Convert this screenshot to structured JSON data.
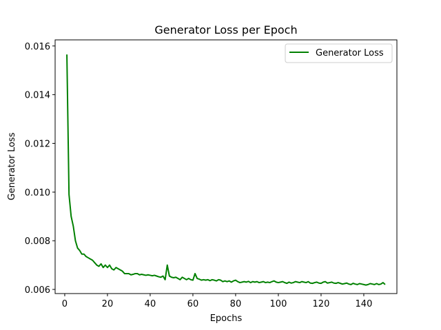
{
  "chart_data": {
    "type": "line",
    "title": "Generator Loss per Epoch",
    "xlabel": "Epochs",
    "ylabel": "Generator Loss",
    "xlim": [
      -4.5,
      155.5
    ],
    "ylim": [
      0.00583,
      0.01625
    ],
    "xticks": [
      0,
      20,
      40,
      60,
      80,
      100,
      120,
      140
    ],
    "yticks": [
      0.006,
      0.008,
      0.01,
      0.012,
      0.014,
      0.016
    ],
    "ytick_labels": [
      "0.006",
      "0.008",
      "0.010",
      "0.012",
      "0.014",
      "0.016"
    ],
    "grid": false,
    "legend_position": "top-right",
    "series": [
      {
        "name": "Generator Loss",
        "color": "#008000",
        "x": [
          1,
          2,
          3,
          4,
          5,
          6,
          7,
          8,
          9,
          10,
          11,
          12,
          13,
          14,
          15,
          16,
          17,
          18,
          19,
          20,
          21,
          22,
          23,
          24,
          25,
          26,
          27,
          28,
          29,
          30,
          31,
          32,
          33,
          34,
          35,
          36,
          37,
          38,
          39,
          40,
          41,
          42,
          43,
          44,
          45,
          46,
          47,
          48,
          49,
          50,
          51,
          52,
          53,
          54,
          55,
          56,
          57,
          58,
          59,
          60,
          61,
          62,
          63,
          64,
          65,
          66,
          67,
          68,
          69,
          70,
          71,
          72,
          73,
          74,
          75,
          76,
          77,
          78,
          79,
          80,
          81,
          82,
          83,
          84,
          85,
          86,
          87,
          88,
          89,
          90,
          91,
          92,
          93,
          94,
          95,
          96,
          97,
          98,
          99,
          100,
          101,
          102,
          103,
          104,
          105,
          106,
          107,
          108,
          109,
          110,
          111,
          112,
          113,
          114,
          115,
          116,
          117,
          118,
          119,
          120,
          121,
          122,
          123,
          124,
          125,
          126,
          127,
          128,
          129,
          130,
          131,
          132,
          133,
          134,
          135,
          136,
          137,
          138,
          139,
          140,
          141,
          142,
          143,
          144,
          145,
          146,
          147,
          148,
          149,
          150
        ],
        "y": [
          0.01565,
          0.0099,
          0.009,
          0.0086,
          0.008,
          0.0077,
          0.0076,
          0.00745,
          0.00745,
          0.00735,
          0.0073,
          0.00725,
          0.0072,
          0.0071,
          0.007,
          0.00695,
          0.00705,
          0.0069,
          0.007,
          0.0069,
          0.007,
          0.00685,
          0.0068,
          0.0069,
          0.00685,
          0.0068,
          0.00675,
          0.00665,
          0.00665,
          0.00665,
          0.0066,
          0.00662,
          0.00665,
          0.00665,
          0.0066,
          0.00662,
          0.0066,
          0.00658,
          0.0066,
          0.00658,
          0.00656,
          0.00658,
          0.00655,
          0.00652,
          0.0065,
          0.00655,
          0.0064,
          0.007,
          0.00655,
          0.0065,
          0.00648,
          0.0065,
          0.00645,
          0.0064,
          0.0065,
          0.00645,
          0.0064,
          0.00645,
          0.0064,
          0.00638,
          0.00665,
          0.00645,
          0.00642,
          0.00638,
          0.0064,
          0.00638,
          0.0064,
          0.00636,
          0.0064,
          0.00638,
          0.00635,
          0.0064,
          0.00638,
          0.00632,
          0.00635,
          0.00632,
          0.00635,
          0.0063,
          0.00635,
          0.00638,
          0.00632,
          0.00628,
          0.0063,
          0.00632,
          0.0063,
          0.00633,
          0.00628,
          0.00632,
          0.0063,
          0.00632,
          0.00628,
          0.0063,
          0.00632,
          0.00628,
          0.0063,
          0.00628,
          0.00632,
          0.00635,
          0.0063,
          0.00628,
          0.0063,
          0.00632,
          0.00628,
          0.00625,
          0.0063,
          0.00626,
          0.00628,
          0.00632,
          0.0063,
          0.00628,
          0.00632,
          0.0063,
          0.00628,
          0.00632,
          0.00626,
          0.00625,
          0.00628,
          0.0063,
          0.00626,
          0.00625,
          0.0063,
          0.00632,
          0.00626,
          0.00628,
          0.0063,
          0.00626,
          0.00625,
          0.00628,
          0.00625,
          0.00622,
          0.00624,
          0.00626,
          0.00622,
          0.0062,
          0.00625,
          0.00622,
          0.0062,
          0.00624,
          0.00622,
          0.0062,
          0.00618,
          0.0062,
          0.00624,
          0.00622,
          0.0062,
          0.00624,
          0.0062,
          0.00622,
          0.00628,
          0.0062
        ]
      }
    ]
  }
}
